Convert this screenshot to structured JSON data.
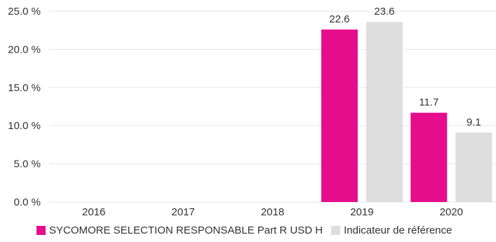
{
  "chart_data": {
    "type": "bar",
    "title": "",
    "xlabel": "",
    "ylabel": "",
    "categories": [
      "2016",
      "2017",
      "2018",
      "2019",
      "2020"
    ],
    "series": [
      {
        "name": "SYCOMORE SELECTION RESPONSABLE Part R USD H",
        "color": "#e60d8c",
        "values": [
          null,
          null,
          null,
          22.6,
          11.7
        ],
        "labels": [
          "",
          "",
          "",
          "22.6",
          "11.7"
        ]
      },
      {
        "name": "Indicateur de référence",
        "color": "#dedede",
        "values": [
          null,
          null,
          null,
          23.6,
          9.1
        ],
        "labels": [
          "",
          "",
          "",
          "23.6",
          "9.1"
        ]
      }
    ],
    "ylim": [
      0,
      25
    ],
    "yticks": [
      0,
      5,
      10,
      15,
      20,
      25
    ],
    "ytick_labels": [
      "0.0 %",
      "5.0 %",
      "10.0 %",
      "15.0 %",
      "20.0 %",
      "25.0 %"
    ],
    "grid": true,
    "legend_position": "bottom-left"
  },
  "colors": {
    "grid": "#e6e6e6",
    "axis_text": "#333333"
  }
}
